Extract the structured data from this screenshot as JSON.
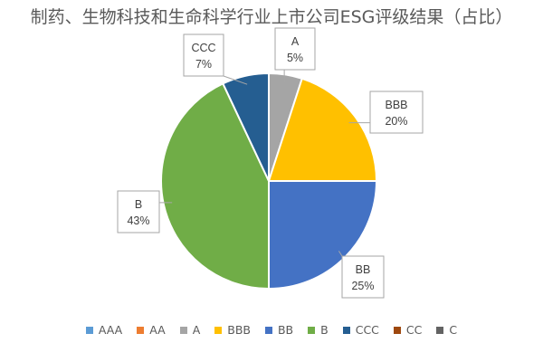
{
  "chart_data": {
    "type": "pie",
    "title": "制药、生物科技和生命科学行业上市公司ESG评级结果（占比）",
    "categories": [
      "AAA",
      "AA",
      "A",
      "BBB",
      "BB",
      "B",
      "CCC",
      "CC",
      "C"
    ],
    "values": [
      0,
      0,
      5,
      20,
      25,
      43,
      7,
      0,
      0
    ],
    "value_labels": [
      "",
      "",
      "5%",
      "20%",
      "25%",
      "43%",
      "7%",
      "",
      ""
    ],
    "colors": [
      "#5B9BD5",
      "#ED7D31",
      "#A5A5A5",
      "#FFC000",
      "#4472C4",
      "#70AD47",
      "#255E91",
      "#9E480E",
      "#636363"
    ],
    "legend_position": "bottom"
  }
}
